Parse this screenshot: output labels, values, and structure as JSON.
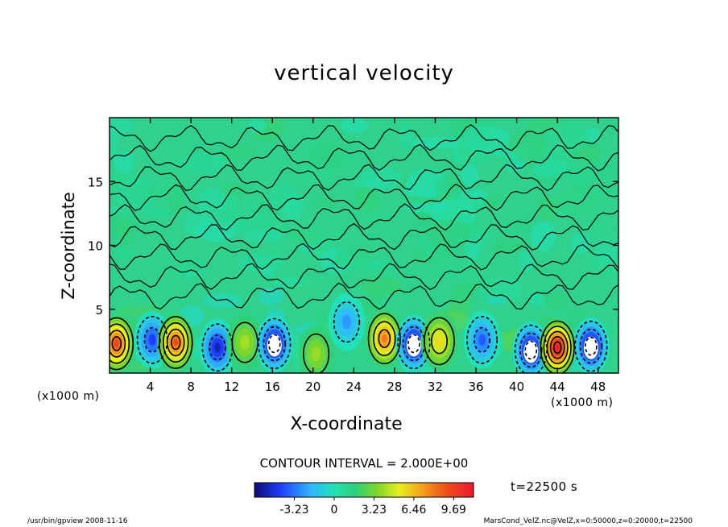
{
  "chart_data": {
    "type": "heatmap",
    "title": "vertical velocity",
    "xlabel": "X-coordinate",
    "ylabel": "Z-coordinate",
    "x_unit": "(x1000 m)",
    "xlim": [
      0,
      50
    ],
    "ylim": [
      0,
      20
    ],
    "x_ticks": [
      4,
      8,
      12,
      16,
      20,
      24,
      28,
      32,
      36,
      40,
      44,
      48
    ],
    "y_ticks": [
      5,
      10,
      15
    ],
    "contour_interval": "CONTOUR INTERVAL = 2.000E+00",
    "time": "t=22500 s",
    "colorbar": {
      "range": [
        -6.46,
        11.3
      ],
      "tick_values": [
        -3.23,
        0,
        3.23,
        6.46,
        9.69
      ],
      "tick_labels": [
        "-3.23",
        "0",
        "3.23",
        "6.46",
        "9.69"
      ]
    },
    "cells": [
      {
        "x": 0.7,
        "z": 2.3,
        "w": 9.0
      },
      {
        "x": 4.2,
        "z": 2.6,
        "w": -4.5
      },
      {
        "x": 6.5,
        "z": 2.4,
        "w": 8.5
      },
      {
        "x": 10.6,
        "z": 2.0,
        "w": -5.5
      },
      {
        "x": 13.3,
        "z": 2.4,
        "w": 3.2
      },
      {
        "x": 16.2,
        "z": 2.3,
        "w": -6.2
      },
      {
        "x": 20.3,
        "z": 1.5,
        "w": 3.0
      },
      {
        "x": 23.3,
        "z": 4.0,
        "w": -3.0
      },
      {
        "x": 27.0,
        "z": 2.7,
        "w": 7.5
      },
      {
        "x": 29.9,
        "z": 2.3,
        "w": -6.2
      },
      {
        "x": 32.4,
        "z": 2.5,
        "w": 5.0
      },
      {
        "x": 36.6,
        "z": 2.6,
        "w": -4.0
      },
      {
        "x": 41.4,
        "z": 1.8,
        "w": -6.2
      },
      {
        "x": 44.0,
        "z": 2.0,
        "w": 11.0
      },
      {
        "x": 47.3,
        "z": 2.1,
        "w": -6.2
      }
    ]
  },
  "footer": {
    "left": "/usr/bin/gpview   2008-11-16",
    "right": "MarsCond_VelZ.nc@VelZ,x=0:50000,z=0:20000,t=22500"
  }
}
